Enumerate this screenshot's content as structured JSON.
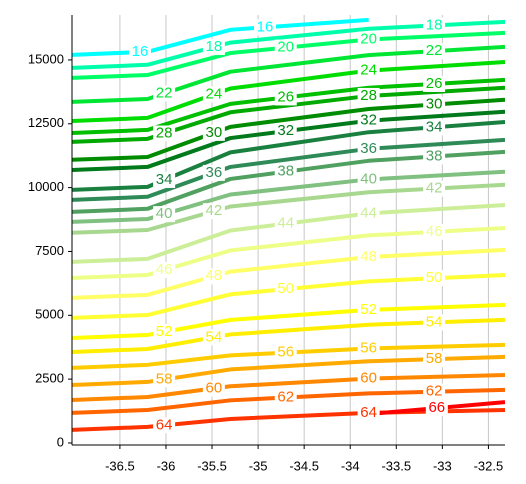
{
  "chart_data": {
    "type": "contour",
    "x": [
      -37.02,
      -36.2,
      -35.3,
      -33.8,
      -32.32
    ],
    "xlim": [
      -37.02,
      -32.32
    ],
    "xticks": [
      -36.5,
      -36,
      -35.5,
      -35,
      -34.5,
      -34,
      -33.5,
      -33,
      -32.5
    ],
    "ylim": [
      -80,
      16760
    ],
    "yticks": [
      0,
      2500,
      5000,
      7500,
      10000,
      12500,
      15000
    ],
    "grid": true,
    "series": [
      {
        "level": 16,
        "color": "#00ffff",
        "values": [
          15200,
          15320,
          16180,
          16570,
          null
        ]
      },
      {
        "level": 18,
        "color": "#00ffaa",
        "values": [
          14690,
          14810,
          15680,
          16220,
          16490
        ]
      },
      {
        "level": 20,
        "color": "#00ff66",
        "values": [
          14300,
          14410,
          15270,
          15800,
          16060
        ]
      },
      {
        "level": 22,
        "color": "#00e632",
        "values": [
          13360,
          13470,
          14540,
          15190,
          15510
        ]
      },
      {
        "level": 24,
        "color": "#00dd00",
        "values": [
          12610,
          12730,
          13880,
          14580,
          14920
        ]
      },
      {
        "level": 26,
        "color": "#00c000",
        "values": [
          12140,
          12260,
          13280,
          13910,
          14220
        ]
      },
      {
        "level": 28,
        "color": "#00aa00",
        "values": [
          11790,
          11910,
          12950,
          13590,
          13910
        ]
      },
      {
        "level": 30,
        "color": "#008c00",
        "values": [
          11090,
          11200,
          12380,
          13080,
          13440
        ]
      },
      {
        "level": 32,
        "color": "#007a1a",
        "values": [
          10690,
          10810,
          11940,
          12620,
          12970
        ]
      },
      {
        "level": 34,
        "color": "#1a8040",
        "values": [
          9910,
          10030,
          11380,
          12170,
          12570
        ]
      },
      {
        "level": 36,
        "color": "#2e8b57",
        "values": [
          9520,
          9640,
          10810,
          11520,
          11870
        ]
      },
      {
        "level": 38,
        "color": "#50a060",
        "values": [
          9050,
          9170,
          10340,
          11050,
          11400
        ]
      },
      {
        "level": 40,
        "color": "#80c080",
        "values": [
          8660,
          8770,
          9730,
          10320,
          10620
        ]
      },
      {
        "level": 42,
        "color": "#a8d890",
        "values": [
          8230,
          8340,
          9260,
          9820,
          10110
        ]
      },
      {
        "level": 44,
        "color": "#ccee99",
        "values": [
          7090,
          7210,
          8320,
          8990,
          9320
        ]
      },
      {
        "level": 46,
        "color": "#eeff88",
        "values": [
          6460,
          6580,
          7540,
          8130,
          8420
        ]
      },
      {
        "level": 48,
        "color": "#ffff66",
        "values": [
          5680,
          5800,
          6710,
          7280,
          7560
        ]
      },
      {
        "level": 50,
        "color": "#ffff33",
        "values": [
          4900,
          5010,
          5820,
          6330,
          6580
        ]
      },
      {
        "level": 52,
        "color": "#ffff00",
        "values": [
          4110,
          4230,
          4820,
          5210,
          5410
        ]
      },
      {
        "level": 54,
        "color": "#ffee00",
        "values": [
          3560,
          3680,
          4250,
          4630,
          4820
        ]
      },
      {
        "level": 56,
        "color": "#ffcc00",
        "values": [
          2940,
          3060,
          3430,
          3700,
          3840
        ]
      },
      {
        "level": 58,
        "color": "#ffaa00",
        "values": [
          2270,
          2390,
          2880,
          3200,
          3370
        ]
      },
      {
        "level": 60,
        "color": "#ff8800",
        "values": [
          1680,
          1800,
          2220,
          2520,
          2660
        ]
      },
      {
        "level": 62,
        "color": "#ff6600",
        "values": [
          1180,
          1290,
          1670,
          1940,
          2080
        ]
      },
      {
        "level": 64,
        "color": "#ff3300",
        "values": [
          510,
          630,
          940,
          1180,
          1290
        ]
      },
      {
        "level": 66,
        "color": "#ff0000",
        "values": [
          null,
          null,
          null,
          1130,
          1600
        ]
      }
    ]
  }
}
